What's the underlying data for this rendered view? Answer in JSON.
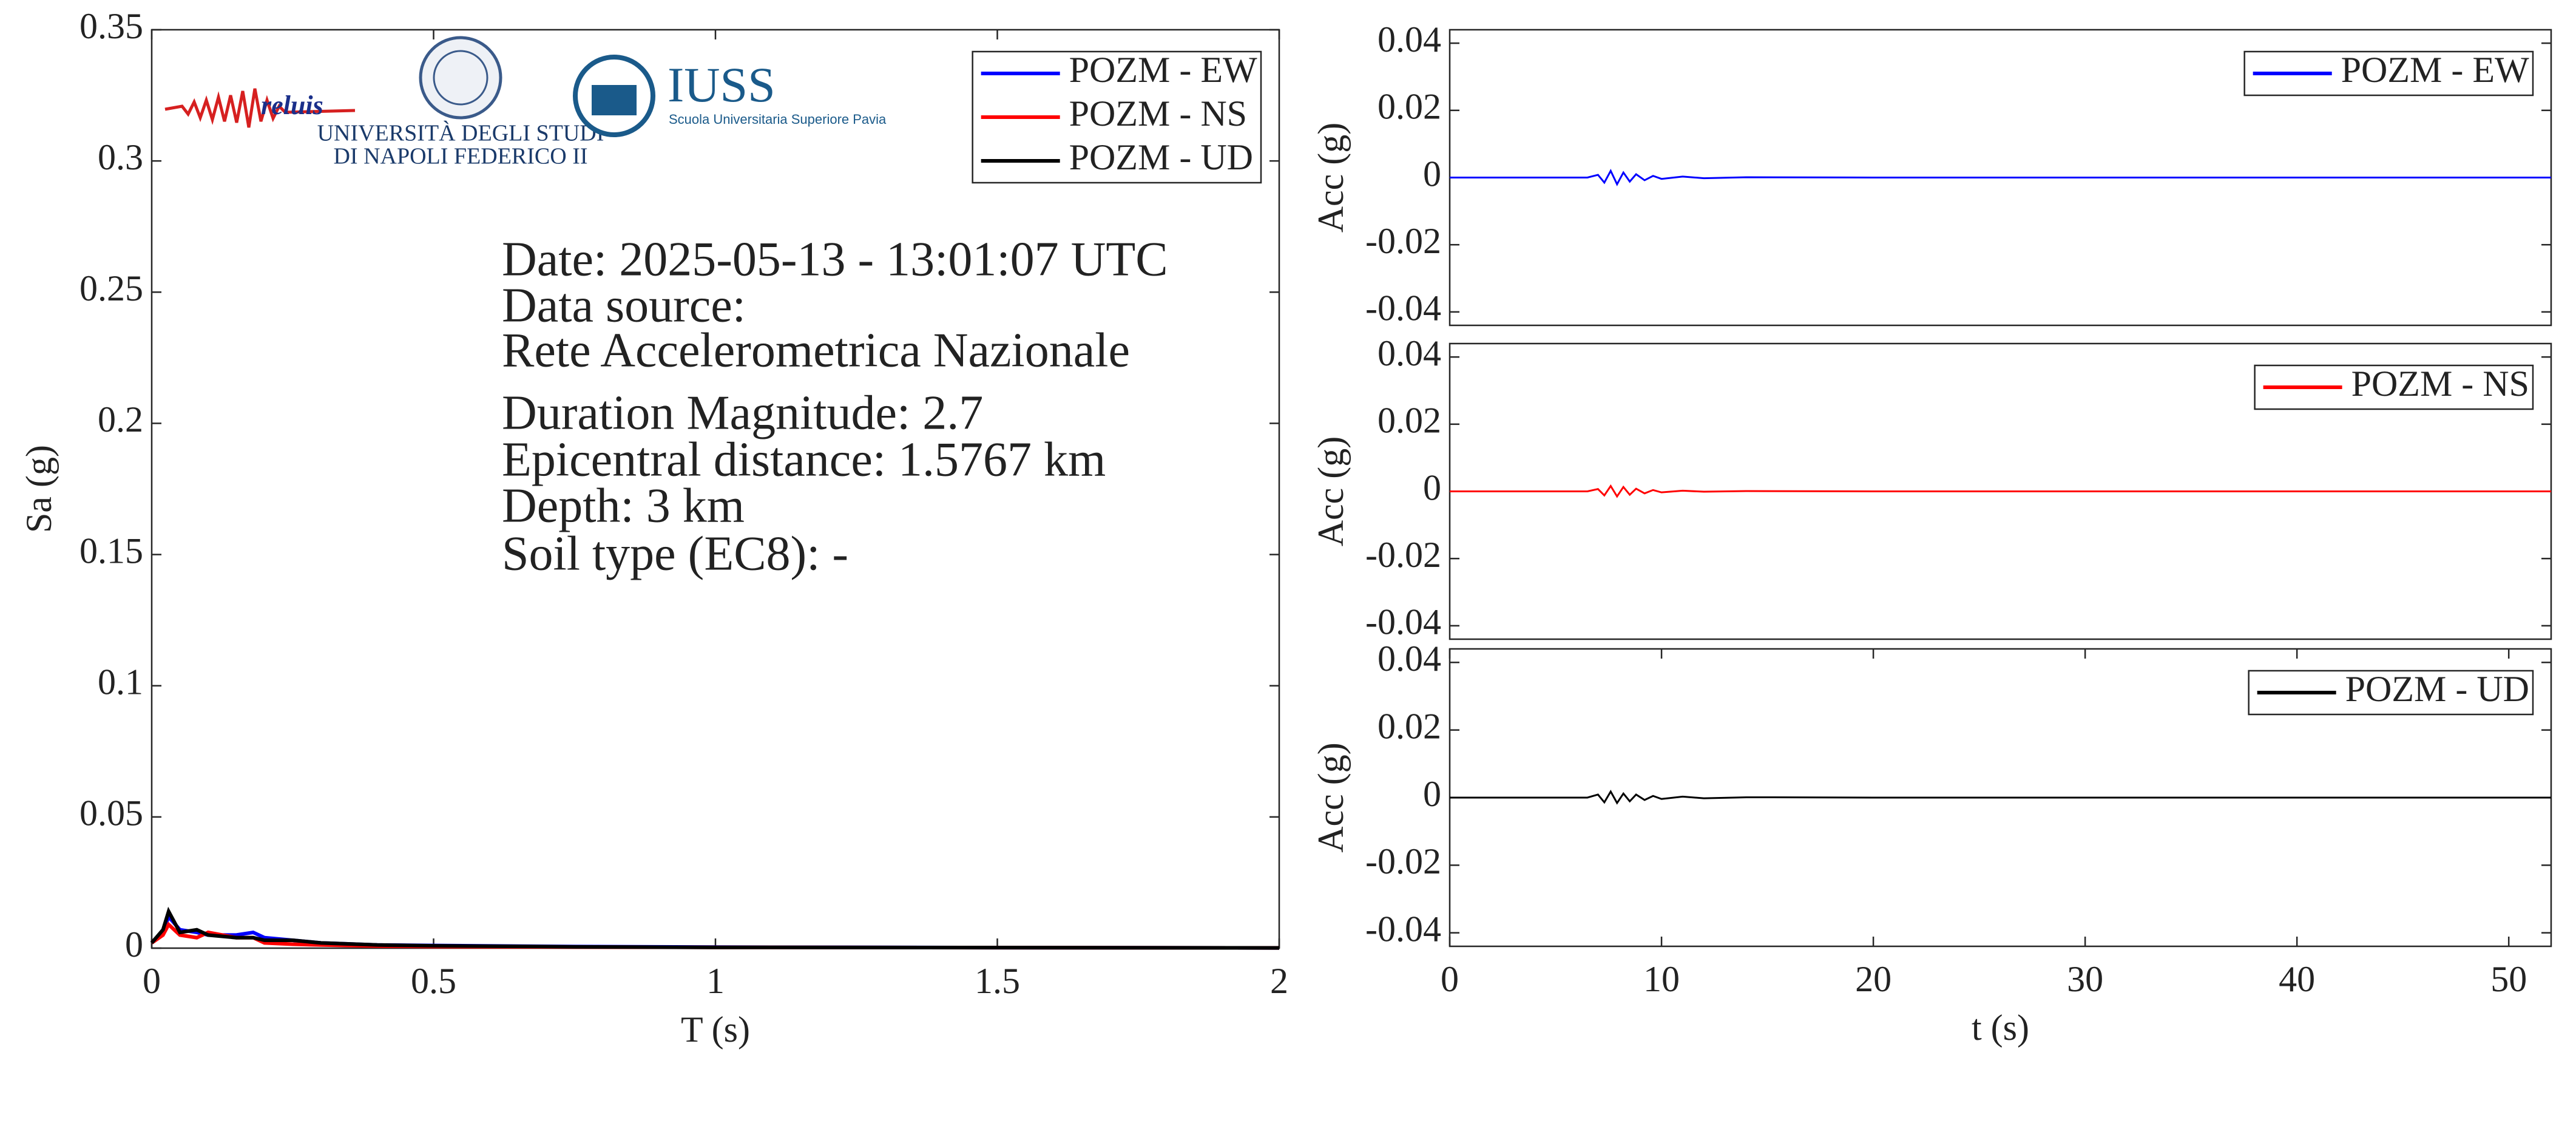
{
  "logos": [
    "reluis",
    "UNIVERSITÀ DEGLI STUDI",
    "DI NAPOLI FEDERICO II",
    "IUSS",
    "Scuola Universitaria Superiore Pavia"
  ],
  "chart_data": [
    {
      "type": "line",
      "xlabel": "T (s)",
      "ylabel": "Sa (g)",
      "xlim": [
        0,
        2
      ],
      "ylim": [
        0,
        0.35
      ],
      "xticks": [
        0,
        0.5,
        1,
        1.5,
        2
      ],
      "yticks": [
        0,
        0.05,
        0.1,
        0.15,
        0.2,
        0.25,
        0.3,
        0.35
      ],
      "legend": "northeast",
      "annotations": [
        "Date: 2025-05-13 - 13:01:07 UTC",
        "Data source:",
        "Rete Accelerometrica Nazionale",
        "Duration Magnitude: 2.7",
        "Epicentral distance: 1.5767 km",
        "Depth: 3 km",
        "Soil type (EC8): -"
      ],
      "x": [
        0,
        0.02,
        0.03,
        0.05,
        0.08,
        0.1,
        0.15,
        0.18,
        0.2,
        0.25,
        0.3,
        0.4,
        0.5,
        0.75,
        1,
        1.5,
        2
      ],
      "series": [
        {
          "name": "POZM - EW",
          "color": "#0000ff",
          "values": [
            0.002,
            0.006,
            0.012,
            0.007,
            0.006,
            0.005,
            0.005,
            0.006,
            0.004,
            0.003,
            0.002,
            0.0012,
            0.001,
            0.0006,
            0.0004,
            0.0002,
            0.0001
          ]
        },
        {
          "name": "POZM - NS",
          "color": "#ff0000",
          "values": [
            0.002,
            0.005,
            0.009,
            0.005,
            0.004,
            0.006,
            0.004,
            0.004,
            0.002,
            0.0015,
            0.0012,
            0.0008,
            0.0006,
            0.0004,
            0.0003,
            0.0002,
            0.0001
          ]
        },
        {
          "name": "POZM - UD",
          "color": "#000000",
          "values": [
            0.002,
            0.007,
            0.014,
            0.006,
            0.007,
            0.005,
            0.004,
            0.004,
            0.003,
            0.003,
            0.002,
            0.0012,
            0.0009,
            0.0005,
            0.0003,
            0.0002,
            0.0001
          ]
        }
      ]
    },
    {
      "type": "line",
      "ylabel": "Acc (g)",
      "xlim": [
        0,
        52
      ],
      "ylim": [
        -0.044,
        0.044
      ],
      "yticks": [
        -0.04,
        -0.02,
        0,
        0.02,
        0.04
      ],
      "legend": "northeast",
      "x": [
        0,
        6.5,
        7,
        7.3,
        7.6,
        7.9,
        8.2,
        8.5,
        8.8,
        9.2,
        9.6,
        10,
        11,
        12,
        14,
        20,
        52
      ],
      "series": [
        {
          "name": "POZM - EW",
          "color": "#0000ff",
          "values": [
            0,
            0,
            0.0008,
            -0.0015,
            0.002,
            -0.002,
            0.0015,
            -0.0012,
            0.001,
            -0.0008,
            0.0005,
            -0.0004,
            0.0003,
            -0.0002,
            0.0001,
            0,
            0
          ]
        }
      ]
    },
    {
      "type": "line",
      "ylabel": "Acc (g)",
      "xlim": [
        0,
        52
      ],
      "ylim": [
        -0.044,
        0.044
      ],
      "yticks": [
        -0.04,
        -0.02,
        0,
        0.02,
        0.04
      ],
      "legend": "northeast",
      "x": [
        0,
        6.5,
        7,
        7.3,
        7.6,
        7.9,
        8.2,
        8.5,
        8.8,
        9.2,
        9.6,
        10,
        11,
        12,
        14,
        20,
        52
      ],
      "series": [
        {
          "name": "POZM - NS",
          "color": "#ff0000",
          "values": [
            0,
            0,
            0.0007,
            -0.0012,
            0.0016,
            -0.0015,
            0.0013,
            -0.001,
            0.0008,
            -0.0006,
            0.0004,
            -0.0003,
            0.0002,
            -0.0001,
            0.0001,
            0,
            0
          ]
        }
      ]
    },
    {
      "type": "line",
      "xlabel": "t (s)",
      "ylabel": "Acc (g)",
      "xlim": [
        0,
        52
      ],
      "ylim": [
        -0.044,
        0.044
      ],
      "xticks": [
        0,
        10,
        20,
        30,
        40,
        50
      ],
      "yticks": [
        -0.04,
        -0.02,
        0,
        0.02,
        0.04
      ],
      "legend": "northeast",
      "x": [
        0,
        6.5,
        7,
        7.3,
        7.6,
        7.9,
        8.2,
        8.5,
        8.8,
        9.2,
        9.6,
        10,
        11,
        12,
        14,
        20,
        52
      ],
      "series": [
        {
          "name": "POZM - UD",
          "color": "#000000",
          "values": [
            0,
            0,
            0.0009,
            -0.0014,
            0.0018,
            -0.0016,
            0.0012,
            -0.0011,
            0.0009,
            -0.0007,
            0.0005,
            -0.0004,
            0.0003,
            -0.0002,
            0.0001,
            0,
            0
          ]
        }
      ]
    }
  ]
}
